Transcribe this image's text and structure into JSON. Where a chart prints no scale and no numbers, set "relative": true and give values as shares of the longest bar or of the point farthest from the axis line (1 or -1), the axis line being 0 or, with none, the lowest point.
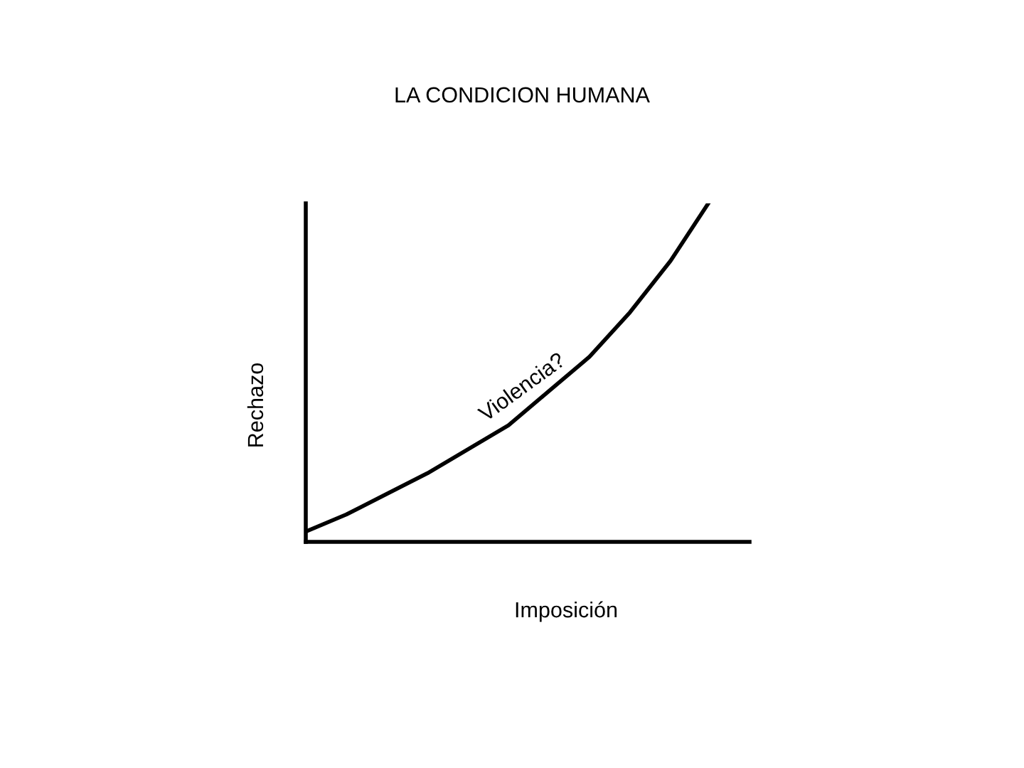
{
  "chart_data": {
    "type": "line",
    "title": "LA CONDICION HUMANA",
    "xlabel": "Imposición",
    "ylabel": "Rechazo",
    "relative": true,
    "categories": [
      null,
      null,
      null,
      null,
      null,
      null,
      null,
      null,
      null,
      null,
      null
    ],
    "series": [
      {
        "color": "#000000",
        "values": [
          0.03,
          0.08,
          0.14,
          0.2,
          0.27,
          0.34,
          0.44,
          0.54,
          0.67,
          0.82,
          1.0
        ]
      }
    ],
    "annotations": [
      "Violencia?"
    ],
    "legend": false,
    "marker": "none",
    "line_style": "solid"
  }
}
